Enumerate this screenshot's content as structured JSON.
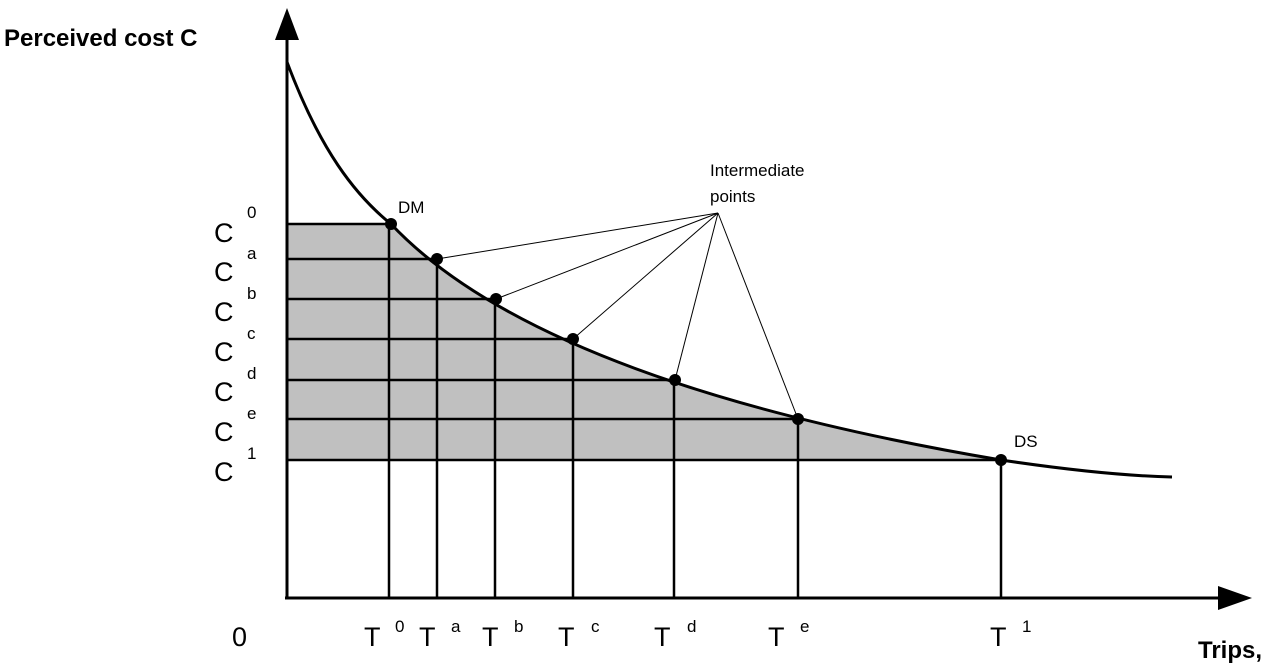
{
  "axes": {
    "y_title": "Perceived cost C",
    "x_title": "Trips,",
    "origin_label": "0"
  },
  "y_levels": [
    {
      "base": "C",
      "sup": "0"
    },
    {
      "base": "C",
      "sup": "a"
    },
    {
      "base": "C",
      "sup": "b"
    },
    {
      "base": "C",
      "sup": "c"
    },
    {
      "base": "C",
      "sup": "d"
    },
    {
      "base": "C",
      "sup": "e"
    },
    {
      "base": "C",
      "sup": "1"
    }
  ],
  "x_levels": [
    {
      "base": "T",
      "sup": "0"
    },
    {
      "base": "T",
      "sup": "a"
    },
    {
      "base": "T",
      "sup": "b"
    },
    {
      "base": "T",
      "sup": "c"
    },
    {
      "base": "T",
      "sup": "d"
    },
    {
      "base": "T",
      "sup": "e"
    },
    {
      "base": "T",
      "sup": "1"
    }
  ],
  "point_labels": {
    "start": "DM",
    "end": "DS"
  },
  "annotation": {
    "line1": "Intermediate",
    "line2": "points"
  },
  "colors": {
    "shade": "#c0c0c0",
    "ink": "#000000"
  }
}
